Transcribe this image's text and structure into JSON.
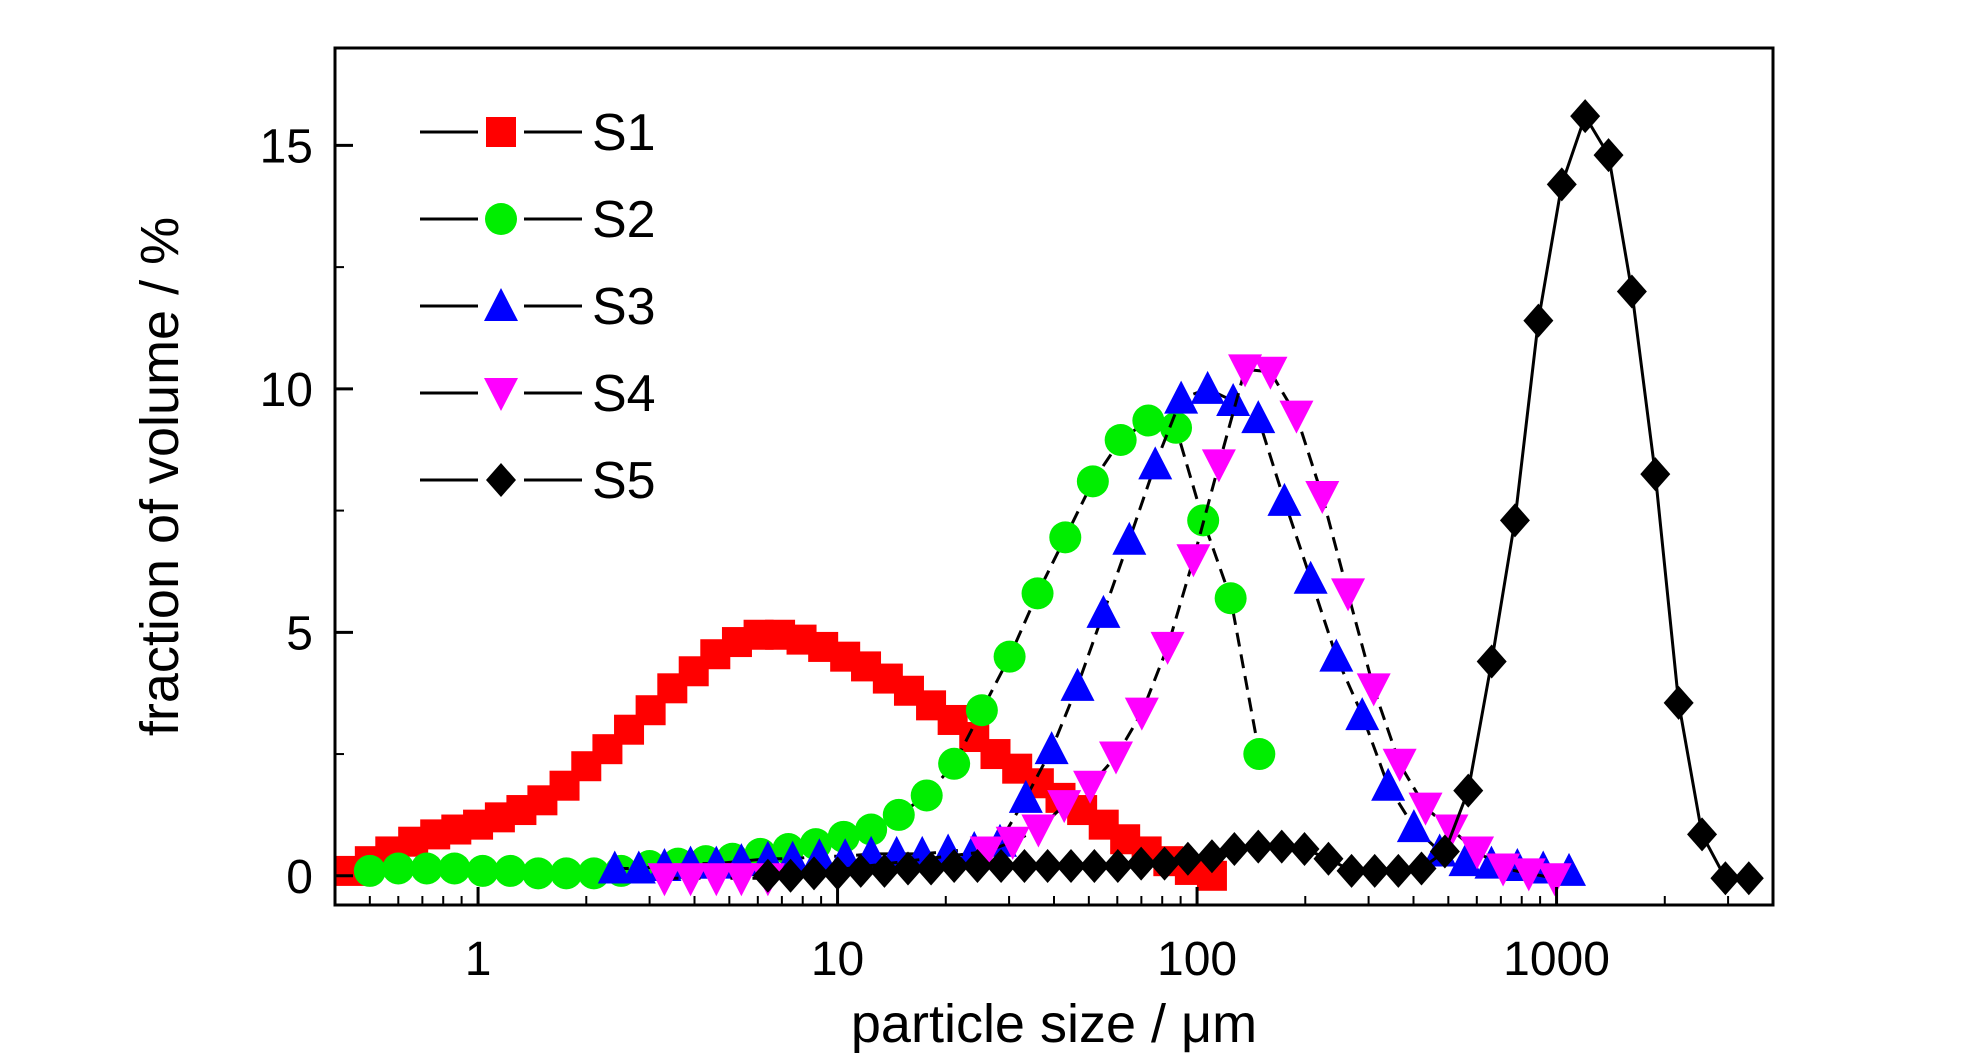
{
  "chart_data": {
    "type": "line",
    "title": "",
    "xlabel": "particle size / μm",
    "ylabel": "fraction of volume / %",
    "xscale": "log",
    "xlim": [
      0.4,
      4000
    ],
    "ylim": [
      -0.6,
      17
    ],
    "x_ticks": [
      1,
      10,
      100,
      1000
    ],
    "x_tick_labels": [
      "1",
      "10",
      "100",
      "1000"
    ],
    "y_ticks": [
      0,
      5,
      10,
      15
    ],
    "y_tick_labels": [
      "0",
      "5",
      "10",
      "15"
    ],
    "grid": false,
    "legend_position": "top-left",
    "series": [
      {
        "name": "S1",
        "color": "#ff0000",
        "marker": "square",
        "line": "dashed",
        "x": [
          0.44,
          0.5,
          0.57,
          0.66,
          0.76,
          0.87,
          1.0,
          1.15,
          1.32,
          1.51,
          1.74,
          2.0,
          2.29,
          2.63,
          3.02,
          3.47,
          3.98,
          4.57,
          5.25,
          6.03,
          6.92,
          7.94,
          9.12,
          10.5,
          12.0,
          13.8,
          15.8,
          18.2,
          20.9,
          24.0,
          27.5,
          31.6,
          36.3,
          41.7,
          47.9,
          55.0,
          63.1,
          72.4,
          83.2,
          95.5,
          110
        ],
        "y": [
          0.1,
          0.3,
          0.5,
          0.7,
          0.85,
          0.95,
          1.05,
          1.2,
          1.35,
          1.55,
          1.85,
          2.25,
          2.6,
          3.0,
          3.4,
          3.85,
          4.2,
          4.55,
          4.8,
          4.95,
          4.95,
          4.85,
          4.7,
          4.5,
          4.3,
          4.05,
          3.8,
          3.5,
          3.2,
          2.85,
          2.5,
          2.2,
          1.9,
          1.6,
          1.35,
          1.05,
          0.75,
          0.5,
          0.3,
          0.12,
          0.0
        ]
      },
      {
        "name": "S2",
        "color": "#00ee00",
        "marker": "circle",
        "line": "dashed",
        "x": [
          0.5,
          0.6,
          0.72,
          0.86,
          1.03,
          1.23,
          1.47,
          1.76,
          2.1,
          2.5,
          3.0,
          3.6,
          4.3,
          5.1,
          6.1,
          7.3,
          8.7,
          10.4,
          12.4,
          14.8,
          17.7,
          21.1,
          25.2,
          30.1,
          36.0,
          43.0,
          51.3,
          61.3,
          73.2,
          87.4,
          104,
          124,
          149
        ],
        "y": [
          0.1,
          0.15,
          0.15,
          0.15,
          0.1,
          0.1,
          0.05,
          0.05,
          0.05,
          0.1,
          0.2,
          0.25,
          0.3,
          0.35,
          0.45,
          0.55,
          0.65,
          0.8,
          0.95,
          1.25,
          1.65,
          2.3,
          3.4,
          4.5,
          5.8,
          6.95,
          8.1,
          8.95,
          9.35,
          9.2,
          7.3,
          5.7,
          2.5
        ]
      },
      {
        "name": "S3",
        "color": "#0000ff",
        "marker": "triangle-up",
        "line": "dashed",
        "x": [
          2.4,
          2.8,
          3.3,
          3.9,
          4.6,
          5.4,
          6.4,
          7.5,
          8.9,
          10.5,
          12.4,
          14.6,
          17.2,
          20.3,
          24.0,
          28.3,
          33.4,
          39.4,
          46.5,
          54.9,
          64.8,
          76.5,
          90.3,
          107,
          126,
          148,
          175,
          207,
          244,
          288,
          340,
          401,
          473,
          558,
          659,
          778,
          918,
          1083
        ],
        "y": [
          0.15,
          0.15,
          0.2,
          0.25,
          0.25,
          0.3,
          0.35,
          0.35,
          0.4,
          0.4,
          0.45,
          0.45,
          0.45,
          0.5,
          0.55,
          0.7,
          1.6,
          2.6,
          3.9,
          5.4,
          6.9,
          8.45,
          9.8,
          10.0,
          9.75,
          9.4,
          7.7,
          6.1,
          4.5,
          3.3,
          1.85,
          1.0,
          0.5,
          0.3,
          0.25,
          0.2,
          0.15,
          0.1
        ]
      },
      {
        "name": "S4",
        "color": "#ff00ff",
        "marker": "triangle-down",
        "line": "dashed",
        "x": [
          3.3,
          3.9,
          4.6,
          5.4,
          6.4,
          26.0,
          30.7,
          36.2,
          42.7,
          50.4,
          59.5,
          70.2,
          82.8,
          97.7,
          115,
          136,
          160,
          189,
          223,
          263,
          310,
          366,
          432,
          510,
          601,
          710,
          837,
          988
        ],
        "y": [
          -0.05,
          -0.05,
          -0.05,
          -0.05,
          -0.05,
          0.5,
          0.7,
          0.95,
          1.45,
          1.85,
          2.45,
          3.35,
          4.7,
          6.5,
          8.45,
          10.4,
          10.35,
          9.45,
          7.8,
          5.8,
          3.85,
          2.3,
          1.4,
          0.95,
          0.5,
          0.15,
          0.05,
          -0.05
        ]
      },
      {
        "name": "S5",
        "color": "#000000",
        "marker": "diamond",
        "line": "solid",
        "x": [
          6.4,
          7.4,
          8.6,
          10.0,
          11.6,
          13.5,
          15.7,
          18.2,
          21.1,
          24.5,
          28.5,
          33.1,
          38.4,
          44.6,
          51.8,
          60.2,
          69.9,
          81.2,
          94.3,
          110,
          127,
          148,
          172,
          199,
          232,
          269,
          312,
          363,
          421,
          489,
          568,
          660,
          766,
          890,
          1034,
          1201,
          1395,
          1620,
          1882,
          2186,
          2539,
          2949,
          3426
        ],
        "y": [
          0.0,
          0.0,
          0.05,
          0.05,
          0.1,
          0.1,
          0.15,
          0.15,
          0.2,
          0.2,
          0.2,
          0.2,
          0.2,
          0.2,
          0.2,
          0.2,
          0.25,
          0.25,
          0.35,
          0.4,
          0.55,
          0.6,
          0.6,
          0.55,
          0.35,
          0.1,
          0.1,
          0.1,
          0.15,
          0.5,
          1.75,
          4.4,
          7.3,
          11.4,
          14.2,
          15.6,
          14.8,
          12.0,
          8.25,
          3.55,
          0.85,
          -0.05,
          -0.05
        ]
      }
    ]
  }
}
